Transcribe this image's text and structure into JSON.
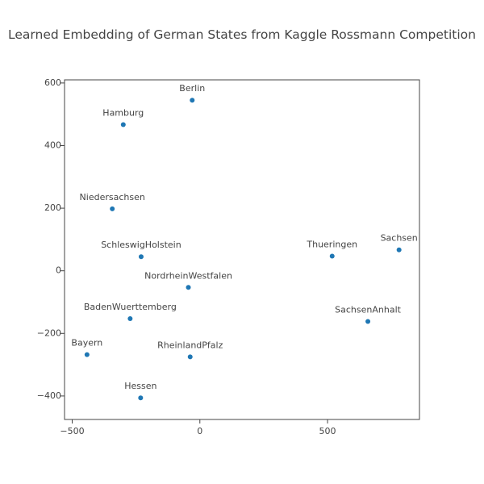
{
  "chart_data": {
    "type": "scatter",
    "title": "Learned Embedding of German States from Kaggle Rossmann Competition",
    "xlabel": "",
    "ylabel": "",
    "xlim": [
      -530,
      860
    ],
    "ylim": [
      -475,
      610
    ],
    "x_ticks": [
      -500,
      0,
      500
    ],
    "x_tick_labels": [
      "−500",
      "0",
      "500"
    ],
    "y_ticks": [
      -400,
      -200,
      0,
      200,
      400,
      600
    ],
    "y_tick_labels": [
      "−400",
      "−200",
      "0",
      "200",
      "400",
      "600"
    ],
    "grid": false,
    "marker_color": "#1f77b4",
    "points": [
      {
        "label": "Berlin",
        "x": -30,
        "y": 545
      },
      {
        "label": "Hamburg",
        "x": -300,
        "y": 467
      },
      {
        "label": "Niedersachsen",
        "x": -343,
        "y": 198
      },
      {
        "label": "SchleswigHolstein",
        "x": -230,
        "y": 45
      },
      {
        "label": "NordrheinWestfalen",
        "x": -45,
        "y": -53
      },
      {
        "label": "BadenWuerttemberg",
        "x": -273,
        "y": -153
      },
      {
        "label": "Bayern",
        "x": -442,
        "y": -268
      },
      {
        "label": "RheinlandPfalz",
        "x": -38,
        "y": -275
      },
      {
        "label": "Hessen",
        "x": -232,
        "y": -406
      },
      {
        "label": "Thueringen",
        "x": 518,
        "y": 47
      },
      {
        "label": "Sachsen",
        "x": 780,
        "y": 67
      },
      {
        "label": "SachsenAnhalt",
        "x": 658,
        "y": -162
      }
    ]
  }
}
